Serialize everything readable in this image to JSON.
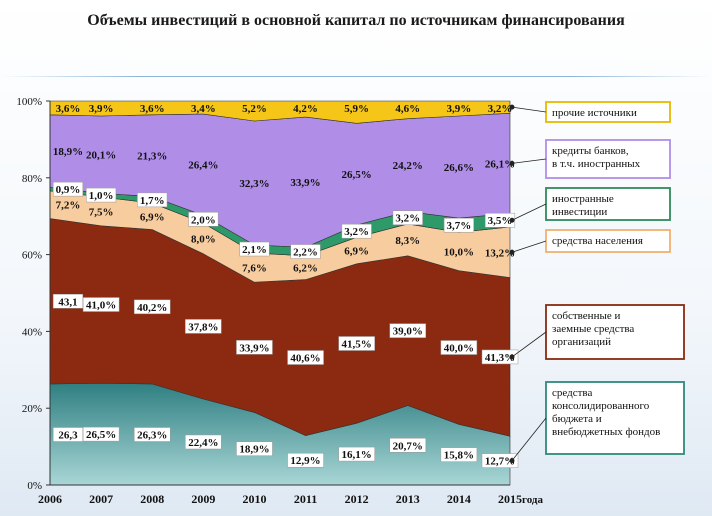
{
  "title": "Объемы инвестиций в основной капитал по источникам финансирования",
  "chart_data": {
    "type": "area",
    "stacked": true,
    "title": "Объемы инвестиций в основной капитал по источникам финансирования",
    "xlabel": "года",
    "ylabel": "",
    "ylim": [
      0,
      100
    ],
    "yticks": [
      "0%",
      "20%",
      "40%",
      "60%",
      "80%",
      "100%"
    ],
    "x": [
      "2006",
      "2007",
      "2008",
      "2009",
      "2010",
      "2011",
      "2012",
      "2013",
      "2014",
      "2015"
    ],
    "series": [
      {
        "name": "средства консолидированного бюджета и внебюджетных фондов",
        "color": "#3a8a8a",
        "values": [
          26.3,
          26.5,
          26.3,
          22.4,
          18.9,
          12.9,
          16.1,
          20.7,
          15.8,
          12.7
        ],
        "labels": [
          "26,3",
          "26,5%",
          "26,3%",
          "22,4%",
          "18,9%",
          "12,9%",
          "16,1%",
          "20,7%",
          "15,8%",
          "12,7%"
        ]
      },
      {
        "name": "собственные и заемные средства организаций",
        "color": "#8b2a10",
        "values": [
          43.1,
          41.0,
          40.2,
          37.8,
          33.9,
          40.6,
          41.5,
          39.0,
          40.0,
          41.3
        ],
        "labels": [
          "43,1",
          "41,0%",
          "40,2%",
          "37,8%",
          "33,9%",
          "40,6%",
          "41,5%",
          "39,0%",
          "40,0%",
          "41,3%"
        ]
      },
      {
        "name": "средства населения",
        "color": "#f7cc9e",
        "values": [
          7.2,
          7.5,
          6.9,
          8.0,
          7.6,
          6.2,
          6.9,
          8.3,
          10.0,
          13.2
        ],
        "labels": [
          "7,2%",
          "7,5%",
          "6,9%",
          "8,0%",
          "7,6%",
          "6,2%",
          "6,9%",
          "8,3%",
          "10,0%",
          "13,2%"
        ]
      },
      {
        "name": "иностранные инвестиции",
        "color": "#2e9a6a",
        "values": [
          0.9,
          1.0,
          1.7,
          2.0,
          2.1,
          2.2,
          3.2,
          3.2,
          3.7,
          3.5
        ],
        "labels": [
          "0,9%",
          "1,0%",
          "1,7%",
          "2,0%",
          "2,1%",
          "2,2%",
          "3,2%",
          "3,2%",
          "3,7%",
          "3,5%"
        ]
      },
      {
        "name": "кредиты банков, в т.ч. иностранных",
        "color": "#b08ee8",
        "values": [
          18.9,
          20.1,
          21.3,
          26.4,
          32.3,
          33.9,
          26.5,
          24.2,
          26.6,
          26.1
        ],
        "labels": [
          "18,9%",
          "20,1%",
          "21,3%",
          "26,4%",
          "32,3%",
          "33,9%",
          "26,5%",
          "24,2%",
          "26,6%",
          "26,1%"
        ]
      },
      {
        "name": "прочие источники",
        "color": "#f5c518",
        "values": [
          3.6,
          3.9,
          3.6,
          3.4,
          5.2,
          4.2,
          5.9,
          4.6,
          3.9,
          3.2
        ],
        "labels": [
          "3,6%",
          "3,9%",
          "3,6%",
          "3,4%",
          "5,2%",
          "4,2%",
          "5,9%",
          "4,6%",
          "3,9%",
          "3,2%"
        ]
      }
    ],
    "legend": [
      {
        "lines": [
          "прочие источники"
        ],
        "border": "#e8b800"
      },
      {
        "lines": [
          "кредиты банков,",
          "в т.ч. иностранных"
        ],
        "border": "#b08ee8"
      },
      {
        "lines": [
          "иностранные",
          "инвестиции"
        ],
        "border": "#2e8a5a"
      },
      {
        "lines": [
          "средства населения"
        ],
        "border": "#f0b070"
      },
      {
        "lines": [
          "собственные и",
          "заемные средства",
          "организаций"
        ],
        "border": "#8b2a10"
      },
      {
        "lines": [
          "средства",
          "консолидированного",
          "бюджета и",
          "внебюджетных фондов"
        ],
        "border": "#2e8a7a"
      }
    ],
    "legend_placement": "right",
    "grid": false
  }
}
